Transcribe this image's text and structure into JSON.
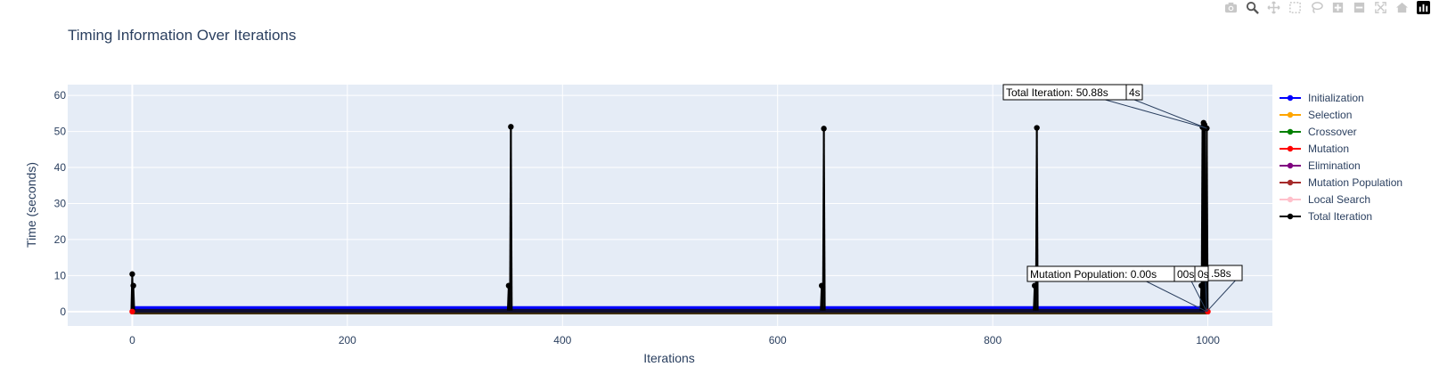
{
  "modebar": {
    "buttons": [
      "camera-icon",
      "zoom-icon",
      "pan-icon",
      "box-select-icon",
      "lasso-select-icon",
      "zoom-in-icon",
      "zoom-out-icon",
      "autoscale-icon",
      "reset-axes-icon",
      "plotly-logo-icon"
    ]
  },
  "colors": {
    "plot_bg": "#e5ecf6",
    "grid": "#ffffff",
    "axis_text": "#2a3f5f",
    "initialization": "#0000ff",
    "selection": "#ffa500",
    "crossover": "#008000",
    "mutation": "#ff0000",
    "elimination": "#800080",
    "mutation_population": "#a52a2a",
    "local_search": "#ffc0cb",
    "total_iteration": "#000000"
  },
  "chart_data": {
    "type": "line",
    "title": "Timing Information Over Iterations",
    "xlabel": "Iterations",
    "ylabel": "Time (seconds)",
    "xlim": [
      -60,
      1060
    ],
    "ylim": [
      -4,
      63
    ],
    "x_ticks": [
      0,
      200,
      400,
      600,
      800,
      1000
    ],
    "y_ticks": [
      0,
      10,
      20,
      30,
      40,
      50,
      60
    ],
    "grid": true,
    "legend_position": "right",
    "iterations": {
      "start": 0,
      "end": 1000
    },
    "series": [
      {
        "name": "Initialization",
        "color": "#0000ff",
        "value": 0.5
      },
      {
        "name": "Selection",
        "color": "#ffa500",
        "value": 0
      },
      {
        "name": "Crossover",
        "color": "#008000",
        "value": 0
      },
      {
        "name": "Mutation",
        "color": "#ff0000",
        "value": 0
      },
      {
        "name": "Elimination",
        "color": "#800080",
        "value": 0
      },
      {
        "name": "Mutation Population",
        "color": "#a52a2a",
        "value": 0
      },
      {
        "name": "Local Search",
        "color": "#ffc0cb",
        "value": 0
      },
      {
        "name": "Total Iteration",
        "color": "#000000",
        "spikes": [
          {
            "x": 0,
            "y": 10.4
          },
          {
            "x": 1,
            "y": 7.2
          },
          {
            "x": 350,
            "y": 7.2
          },
          {
            "x": 352,
            "y": 51.3
          },
          {
            "x": 641,
            "y": 7.2
          },
          {
            "x": 643,
            "y": 50.8
          },
          {
            "x": 839,
            "y": 7.2
          },
          {
            "x": 841,
            "y": 51.0
          },
          {
            "x": 994,
            "y": 7.2
          },
          {
            "x": 995,
            "y": 51.2
          },
          {
            "x": 996,
            "y": 52.4
          },
          {
            "x": 997,
            "y": 51.8
          },
          {
            "x": 999,
            "y": 50.88
          }
        ],
        "baseline": 0.3
      }
    ],
    "annotations": [
      {
        "text": "Total Iteration: 50.88s",
        "anchor": {
          "x": 999,
          "y": 50.88
        }
      },
      {
        "text": "4s",
        "anchor": {
          "x": 999,
          "y": 50.88
        }
      },
      {
        "text": "Mutation Population: 0.00s",
        "anchor": {
          "x": 999,
          "y": 0
        }
      },
      {
        "text": "00s",
        "anchor": {
          "x": 999,
          "y": 0
        }
      },
      {
        "text": "0s",
        "anchor": {
          "x": 999,
          "y": 0
        }
      },
      {
        "text": ".58s",
        "anchor": {
          "x": 999,
          "y": 0
        }
      }
    ]
  }
}
